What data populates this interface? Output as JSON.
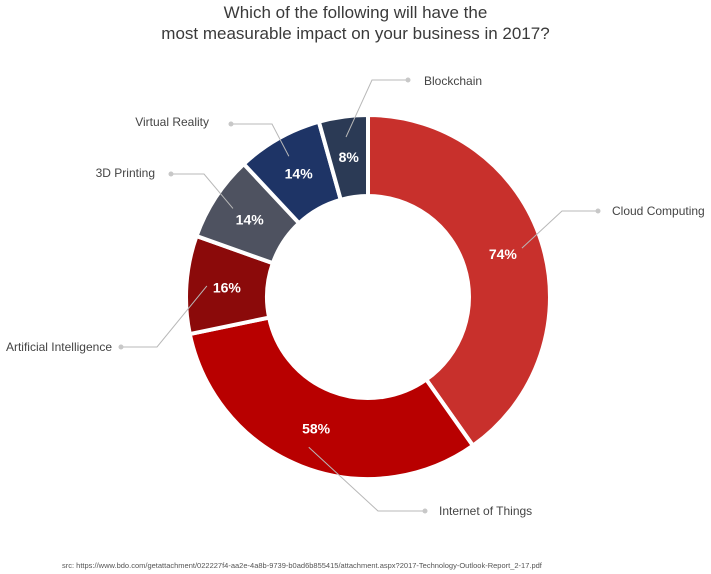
{
  "chart_data": {
    "type": "pie",
    "title_lines": [
      "Which of the following will have the",
      "most measurable impact on your business in 2017?"
    ],
    "categories": [
      "Cloud Computing",
      "Internet of Things",
      "Artificial Intelligence",
      "3D Printing",
      "Virtual Reality",
      "Blockchain"
    ],
    "values": [
      74,
      58,
      16,
      14,
      14,
      8
    ],
    "value_labels": [
      "74%",
      "58%",
      "16%",
      "14%",
      "14%",
      "8%"
    ],
    "colors": [
      "#c8302c",
      "#b80000",
      "#8b0a0a",
      "#4e5260",
      "#1e3466",
      "#2b3a55"
    ],
    "donut": true
  },
  "source_text": "src: https://www.bdo.com/getattachment/022227f4-aa2e-4a8b-9739-b0ad6b855415/attachment.aspx?2017-Technology-Outlook-Report_2-17.pdf"
}
